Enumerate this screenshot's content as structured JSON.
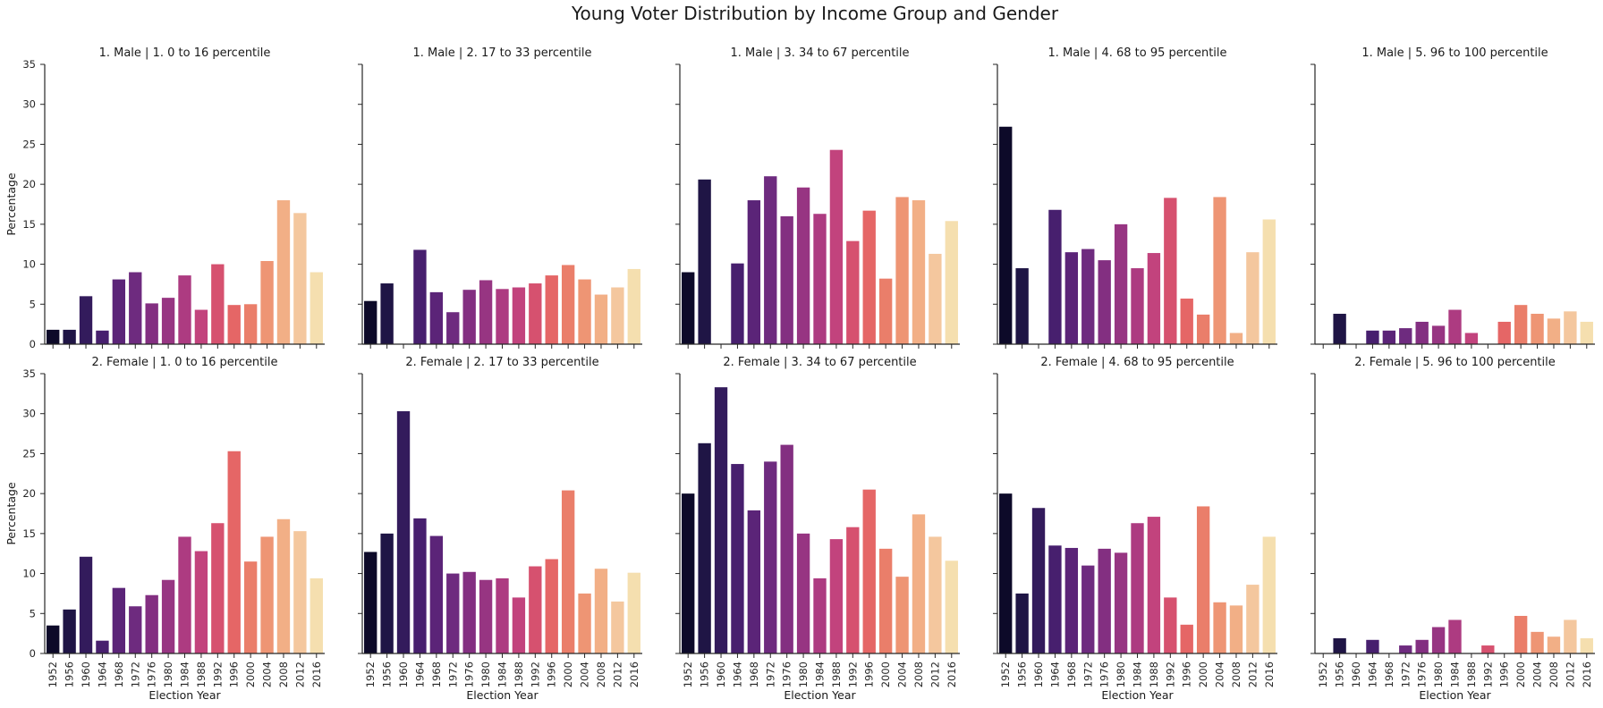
{
  "chart_data": {
    "type": "bar",
    "title": "Young Voter Distribution by Income Group and Gender",
    "xlabel": "Election Year",
    "ylabel": "Percentage",
    "ylim": [
      0,
      35
    ],
    "yticks": [
      0,
      5,
      10,
      15,
      20,
      25,
      30,
      35
    ],
    "categories": [
      "1952",
      "1956",
      "1960",
      "1964",
      "1968",
      "1972",
      "1976",
      "1980",
      "1984",
      "1988",
      "1992",
      "1996",
      "2000",
      "2004",
      "2008",
      "2012",
      "2016"
    ],
    "palette": [
      "#0d0a29",
      "#1f1545",
      "#331b5c",
      "#471f6e",
      "#5b2478",
      "#6e2b7f",
      "#832f81",
      "#973582",
      "#ad3b81",
      "#c2437d",
      "#d6516f",
      "#e56666",
      "#ea7e6a",
      "#ee9574",
      "#f2af86",
      "#f4c79e",
      "#f5dfaf"
    ],
    "panels": [
      {
        "title": "1. Male | 1. 0 to 16 percentile",
        "values": [
          1.8,
          1.8,
          6.0,
          1.7,
          8.1,
          9.0,
          5.1,
          5.8,
          8.6,
          4.3,
          10.0,
          4.9,
          5.0,
          10.4,
          18.0,
          16.4,
          9.0
        ]
      },
      {
        "title": "1. Male | 2. 17 to 33 percentile",
        "values": [
          5.4,
          7.6,
          0,
          11.8,
          6.5,
          4.0,
          6.8,
          8.0,
          6.9,
          7.1,
          7.6,
          8.6,
          9.9,
          8.1,
          6.2,
          7.1,
          9.4
        ]
      },
      {
        "title": "1. Male | 3. 34 to 67 percentile",
        "values": [
          9.0,
          20.6,
          0,
          10.1,
          18.0,
          21.0,
          16.0,
          19.6,
          16.3,
          24.3,
          12.9,
          16.7,
          8.2,
          18.4,
          18.0,
          11.3,
          15.4
        ]
      },
      {
        "title": "1. Male | 4. 68 to 95 percentile",
        "values": [
          27.2,
          9.5,
          0,
          16.8,
          11.5,
          11.9,
          10.5,
          15.0,
          9.5,
          11.4,
          18.3,
          5.7,
          3.7,
          18.4,
          1.4,
          11.5,
          15.6
        ]
      },
      {
        "title": "1. Male | 5. 96 to 100 percentile",
        "values": [
          0,
          3.8,
          0,
          1.7,
          1.7,
          2.0,
          2.8,
          2.3,
          4.3,
          1.4,
          0,
          2.8,
          4.9,
          3.8,
          3.2,
          4.1,
          2.8
        ]
      },
      {
        "title": "2. Female | 1. 0 to 16 percentile",
        "values": [
          3.5,
          5.5,
          12.1,
          1.6,
          8.2,
          5.9,
          7.3,
          9.2,
          14.6,
          12.8,
          16.3,
          25.3,
          11.5,
          14.6,
          16.8,
          15.3,
          9.4
        ]
      },
      {
        "title": "2. Female | 2. 17 to 33 percentile",
        "values": [
          12.7,
          15.0,
          30.3,
          16.9,
          14.7,
          10.0,
          10.2,
          9.2,
          9.4,
          7.0,
          10.9,
          11.8,
          20.4,
          7.5,
          10.6,
          6.5,
          10.1
        ]
      },
      {
        "title": "2. Female | 3. 34 to 67 percentile",
        "values": [
          20.0,
          26.3,
          33.3,
          23.7,
          17.9,
          24.0,
          26.1,
          15.0,
          9.4,
          14.3,
          15.8,
          20.5,
          13.1,
          9.6,
          17.4,
          14.6,
          11.6
        ]
      },
      {
        "title": "2. Female | 4. 68 to 95 percentile",
        "values": [
          20.0,
          7.5,
          18.2,
          13.5,
          13.2,
          11.0,
          13.1,
          12.6,
          16.3,
          17.1,
          7.0,
          3.6,
          18.4,
          6.4,
          6.0,
          8.6,
          14.6
        ]
      },
      {
        "title": "2. Female | 5. 96 to 100 percentile",
        "values": [
          0,
          1.9,
          0,
          1.7,
          0,
          1.0,
          1.7,
          3.3,
          4.2,
          0,
          1.0,
          0,
          4.7,
          2.7,
          2.1,
          4.2,
          1.9
        ]
      }
    ],
    "grid": false,
    "legend": "none"
  }
}
